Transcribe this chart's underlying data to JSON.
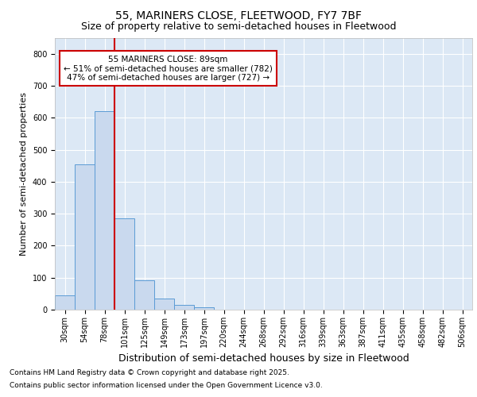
{
  "title1": "55, MARINERS CLOSE, FLEETWOOD, FY7 7BF",
  "title2": "Size of property relative to semi-detached houses in Fleetwood",
  "xlabel": "Distribution of semi-detached houses by size in Fleetwood",
  "ylabel": "Number of semi-detached properties",
  "categories": [
    "30sqm",
    "54sqm",
    "78sqm",
    "101sqm",
    "125sqm",
    "149sqm",
    "173sqm",
    "197sqm",
    "220sqm",
    "244sqm",
    "268sqm",
    "292sqm",
    "316sqm",
    "339sqm",
    "363sqm",
    "387sqm",
    "411sqm",
    "435sqm",
    "458sqm",
    "482sqm",
    "506sqm"
  ],
  "values": [
    45,
    455,
    620,
    285,
    93,
    35,
    14,
    8,
    0,
    0,
    0,
    0,
    0,
    0,
    0,
    0,
    0,
    0,
    0,
    0,
    0
  ],
  "bar_color": "#c9d9ee",
  "bar_edge_color": "#5b9bd5",
  "vline_color": "#cc0000",
  "vline_pos": 2.5,
  "annotation_title": "55 MARINERS CLOSE: 89sqm",
  "annotation_line1": "← 51% of semi-detached houses are smaller (782)",
  "annotation_line2": "47% of semi-detached houses are larger (727) →",
  "annotation_box_color": "#cc0000",
  "ylim": [
    0,
    850
  ],
  "yticks": [
    0,
    100,
    200,
    300,
    400,
    500,
    600,
    700,
    800
  ],
  "footer1": "Contains HM Land Registry data © Crown copyright and database right 2025.",
  "footer2": "Contains public sector information licensed under the Open Government Licence v3.0.",
  "plot_bg_color": "#dce8f5",
  "fig_bg_color": "#ffffff",
  "grid_color": "#ffffff",
  "title1_fontsize": 10,
  "title2_fontsize": 9,
  "ylabel_fontsize": 8,
  "xlabel_fontsize": 9,
  "tick_fontsize": 7,
  "footer_fontsize": 6.5
}
